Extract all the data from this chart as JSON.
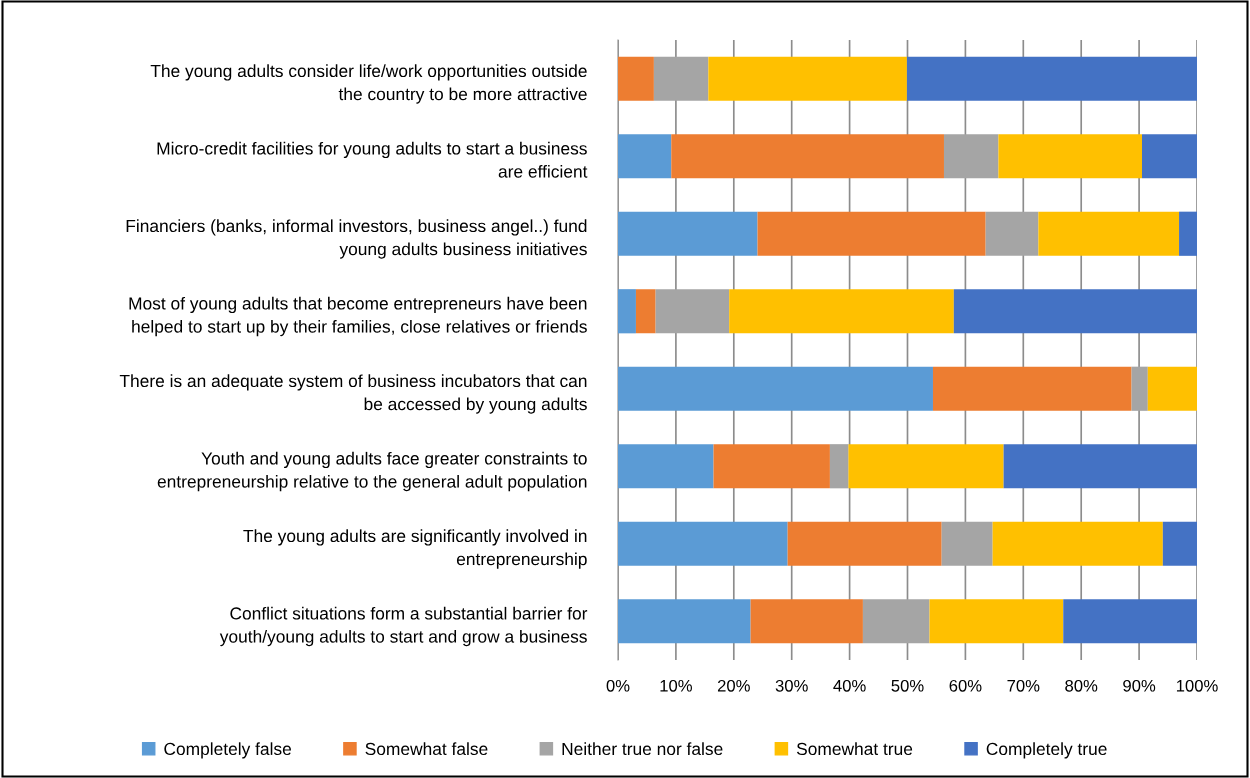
{
  "chart_data": {
    "type": "bar",
    "orientation": "horizontal",
    "stacked": true,
    "categories": [
      "The young adults consider life/work opportunities outside\nthe country to be more attractive",
      "Micro-credit facilities for young adults to start a business\nare efficient",
      "Financiers (banks, informal investors, business angel..) fund\nyoung adults business initiatives",
      "Most of young adults that become entrepreneurs have been\nhelped to start up by their families, close relatives or friends",
      "There is an adequate system of business incubators that can\nbe accessed by young adults",
      "Youth and young adults face greater constraints to\nentrepreneurship relative to the general adult population",
      "The young adults are significantly involved in\nentrepreneurship",
      "Conflict situations form a substantial barrier for\nyouth/young adults to start and grow a business"
    ],
    "series": [
      {
        "name": "Completely false",
        "color": "#5b9bd5",
        "values": [
          0,
          9.2,
          24.1,
          3.1,
          54.4,
          16.5,
          29.3,
          22.9
        ]
      },
      {
        "name": "Somewhat false",
        "color": "#ed7d31",
        "values": [
          6.2,
          47.1,
          39.4,
          3.4,
          34.3,
          20.1,
          26.6,
          19.4
        ]
      },
      {
        "name": "Neither true nor false",
        "color": "#a5a5a5",
        "values": [
          9.4,
          9.4,
          9.1,
          12.7,
          2.8,
          3.2,
          8.8,
          11.5
        ]
      },
      {
        "name": "Somewhat true",
        "color": "#ffc000",
        "values": [
          34.3,
          24.8,
          24.3,
          38.8,
          8.5,
          26.8,
          29.4,
          23.1
        ]
      },
      {
        "name": "Completely true",
        "color": "#4472c4",
        "values": [
          50.1,
          9.5,
          3.1,
          42.0,
          0,
          33.4,
          5.9,
          23.1
        ]
      }
    ],
    "xlim": [
      0,
      100
    ],
    "xticks": [
      {
        "value": 0,
        "label": "0%"
      },
      {
        "value": 10,
        "label": "10%"
      },
      {
        "value": 20,
        "label": "20%"
      },
      {
        "value": 30,
        "label": "30%"
      },
      {
        "value": 40,
        "label": "40%"
      },
      {
        "value": 50,
        "label": "50%"
      },
      {
        "value": 60,
        "label": "60%"
      },
      {
        "value": 70,
        "label": "70%"
      },
      {
        "value": 80,
        "label": "80%"
      },
      {
        "value": 90,
        "label": "90%"
      },
      {
        "value": 100,
        "label": "100%"
      }
    ],
    "grid": "x",
    "legend": "bottom"
  }
}
